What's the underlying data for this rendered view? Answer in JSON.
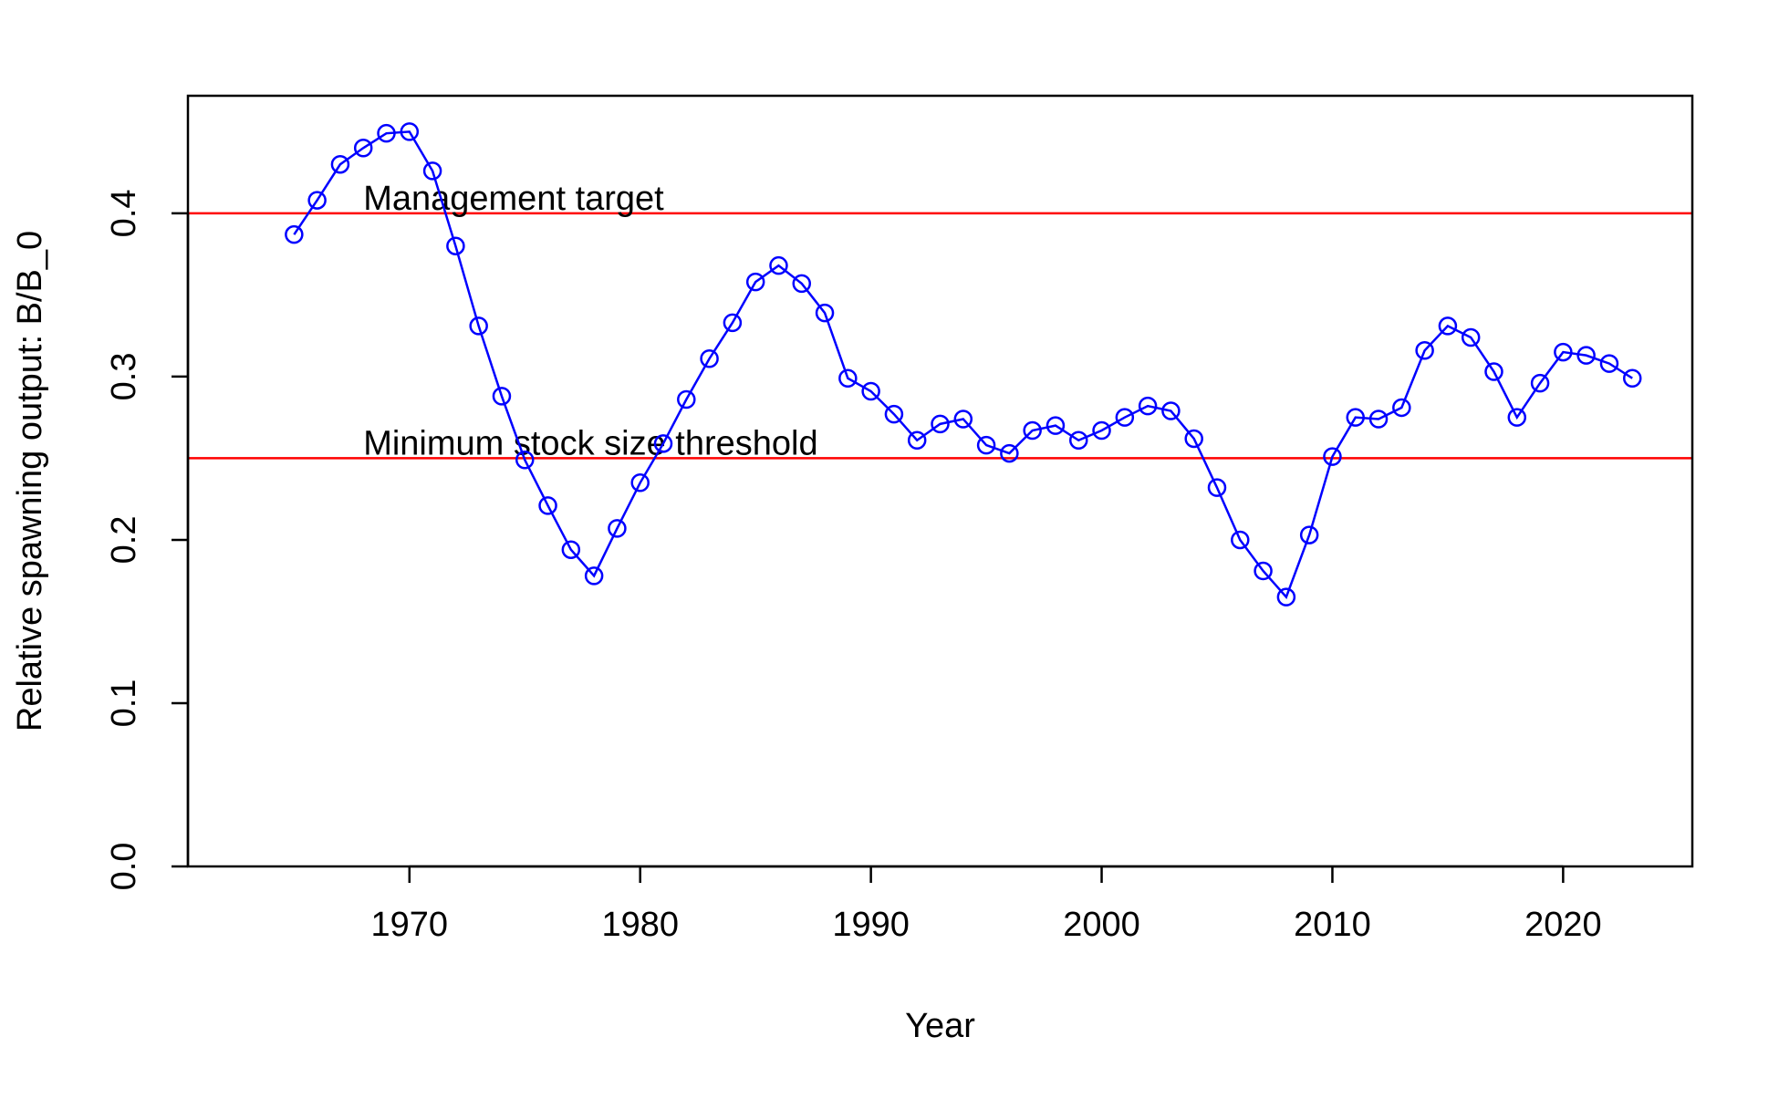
{
  "chart_data": {
    "type": "line",
    "title": "",
    "xlabel": "Year",
    "ylabel": "Relative spawning output: B/B_0",
    "xlim": [
      1960.4,
      2025.6
    ],
    "ylim": [
      0.0,
      0.472
    ],
    "x_ticks": [
      1970,
      1980,
      1990,
      2000,
      2010,
      2020
    ],
    "y_ticks": [
      0.0,
      0.1,
      0.2,
      0.3,
      0.4
    ],
    "y_tick_labels": [
      "0.0",
      "0.1",
      "0.2",
      "0.3",
      "0.4"
    ],
    "grid": false,
    "legend": "none",
    "series": [
      {
        "color": "#0000ff",
        "marker": "open-circle",
        "x": [
          1965,
          1966,
          1967,
          1968,
          1969,
          1970,
          1971,
          1972,
          1973,
          1974,
          1975,
          1976,
          1977,
          1978,
          1979,
          1980,
          1981,
          1982,
          1983,
          1984,
          1985,
          1986,
          1987,
          1988,
          1989,
          1990,
          1991,
          1992,
          1993,
          1994,
          1995,
          1996,
          1997,
          1998,
          1999,
          2000,
          2001,
          2002,
          2003,
          2004,
          2005,
          2006,
          2007,
          2008,
          2009,
          2010,
          2011,
          2012,
          2013,
          2014,
          2015,
          2016,
          2017,
          2018,
          2019,
          2020,
          2021,
          2022,
          2023
        ],
        "values": [
          0.387,
          0.408,
          0.43,
          0.44,
          0.449,
          0.45,
          0.426,
          0.38,
          0.331,
          0.288,
          0.249,
          0.221,
          0.194,
          0.178,
          0.207,
          0.235,
          0.259,
          0.286,
          0.311,
          0.333,
          0.358,
          0.368,
          0.357,
          0.339,
          0.299,
          0.291,
          0.277,
          0.261,
          0.271,
          0.274,
          0.258,
          0.253,
          0.267,
          0.27,
          0.261,
          0.267,
          0.275,
          0.282,
          0.279,
          0.262,
          0.232,
          0.2,
          0.181,
          0.165,
          0.203,
          0.251,
          0.275,
          0.274,
          0.281,
          0.316,
          0.331,
          0.324,
          0.303,
          0.275,
          0.296,
          0.315,
          0.313,
          0.308,
          0.299
        ]
      }
    ],
    "reference_lines": [
      {
        "y": 0.4,
        "label": "Management target",
        "label_x": 1968,
        "color": "#ff0000"
      },
      {
        "y": 0.25,
        "label": "Minimum stock size threshold",
        "label_x": 1968,
        "color": "#ff0000"
      }
    ]
  }
}
